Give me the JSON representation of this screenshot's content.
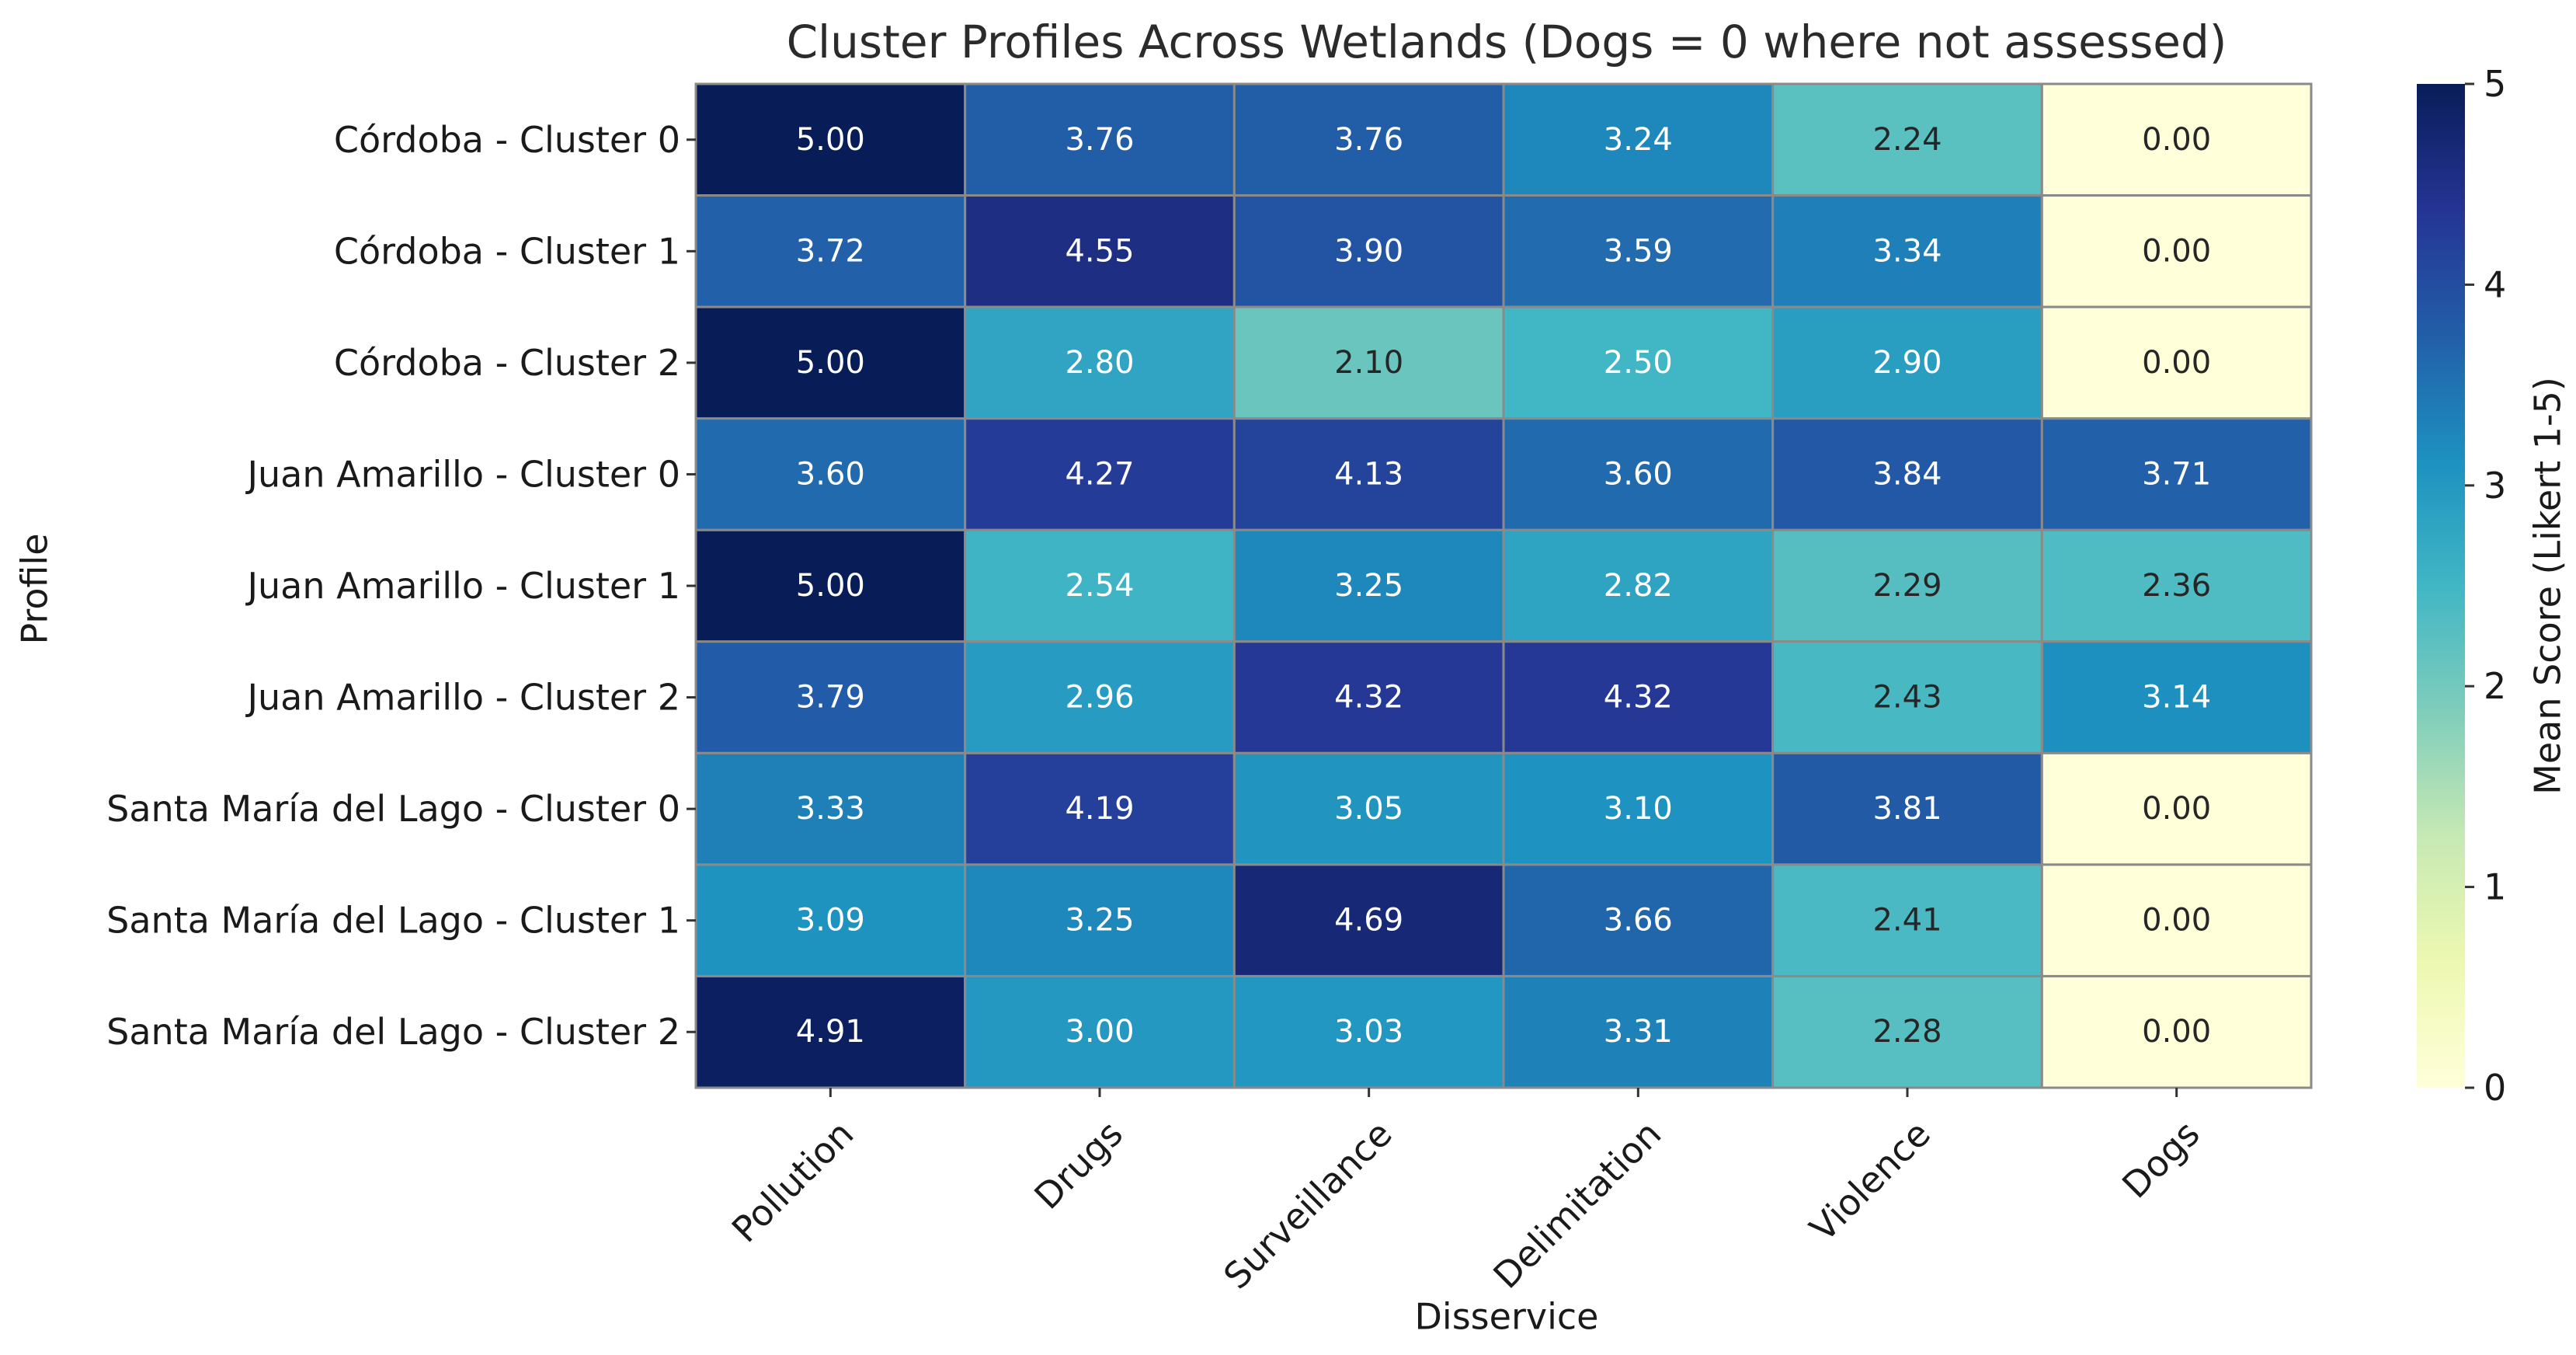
{
  "chart_data": {
    "type": "heatmap",
    "title": "Cluster Profiles Across Wetlands (Dogs = 0 where not assessed)",
    "xlabel": "Disservice",
    "ylabel": "Profile",
    "columns": [
      "Pollution",
      "Drugs",
      "Surveillance",
      "Delimitation",
      "Violence",
      "Dogs"
    ],
    "rows": [
      "Córdoba - Cluster 0",
      "Córdoba - Cluster 1",
      "Córdoba - Cluster 2",
      "Juan Amarillo - Cluster 0",
      "Juan Amarillo - Cluster 1",
      "Juan Amarillo - Cluster 2",
      "Santa María del Lago - Cluster 0",
      "Santa María del Lago - Cluster 1",
      "Santa María del Lago - Cluster 2"
    ],
    "values": [
      [
        5.0,
        3.76,
        3.76,
        3.24,
        2.24,
        0.0
      ],
      [
        3.72,
        4.55,
        3.9,
        3.59,
        3.34,
        0.0
      ],
      [
        5.0,
        2.8,
        2.1,
        2.5,
        2.9,
        0.0
      ],
      [
        3.6,
        4.27,
        4.13,
        3.6,
        3.84,
        3.71
      ],
      [
        5.0,
        2.54,
        3.25,
        2.82,
        2.29,
        2.36
      ],
      [
        3.79,
        2.96,
        4.32,
        4.32,
        2.43,
        3.14
      ],
      [
        3.33,
        4.19,
        3.05,
        3.1,
        3.81,
        0.0
      ],
      [
        3.09,
        3.25,
        4.69,
        3.66,
        2.41,
        0.0
      ],
      [
        4.91,
        3.0,
        3.03,
        3.31,
        2.28,
        0.0
      ]
    ],
    "value_format": "0.00",
    "colormap": "YlGnBu",
    "colormap_stops": [
      "#ffffd9",
      "#edf8b1",
      "#c7e9b4",
      "#7fcdbb",
      "#41b6c4",
      "#1d91c0",
      "#225ea8",
      "#253494",
      "#081d58"
    ],
    "vmin": 0,
    "vmax": 5,
    "colorbar": {
      "label": "Mean Score (Likert 1-5)",
      "ticks": [
        "0",
        "1",
        "2",
        "3",
        "4",
        "5"
      ]
    },
    "grid": true,
    "legend": "right"
  }
}
